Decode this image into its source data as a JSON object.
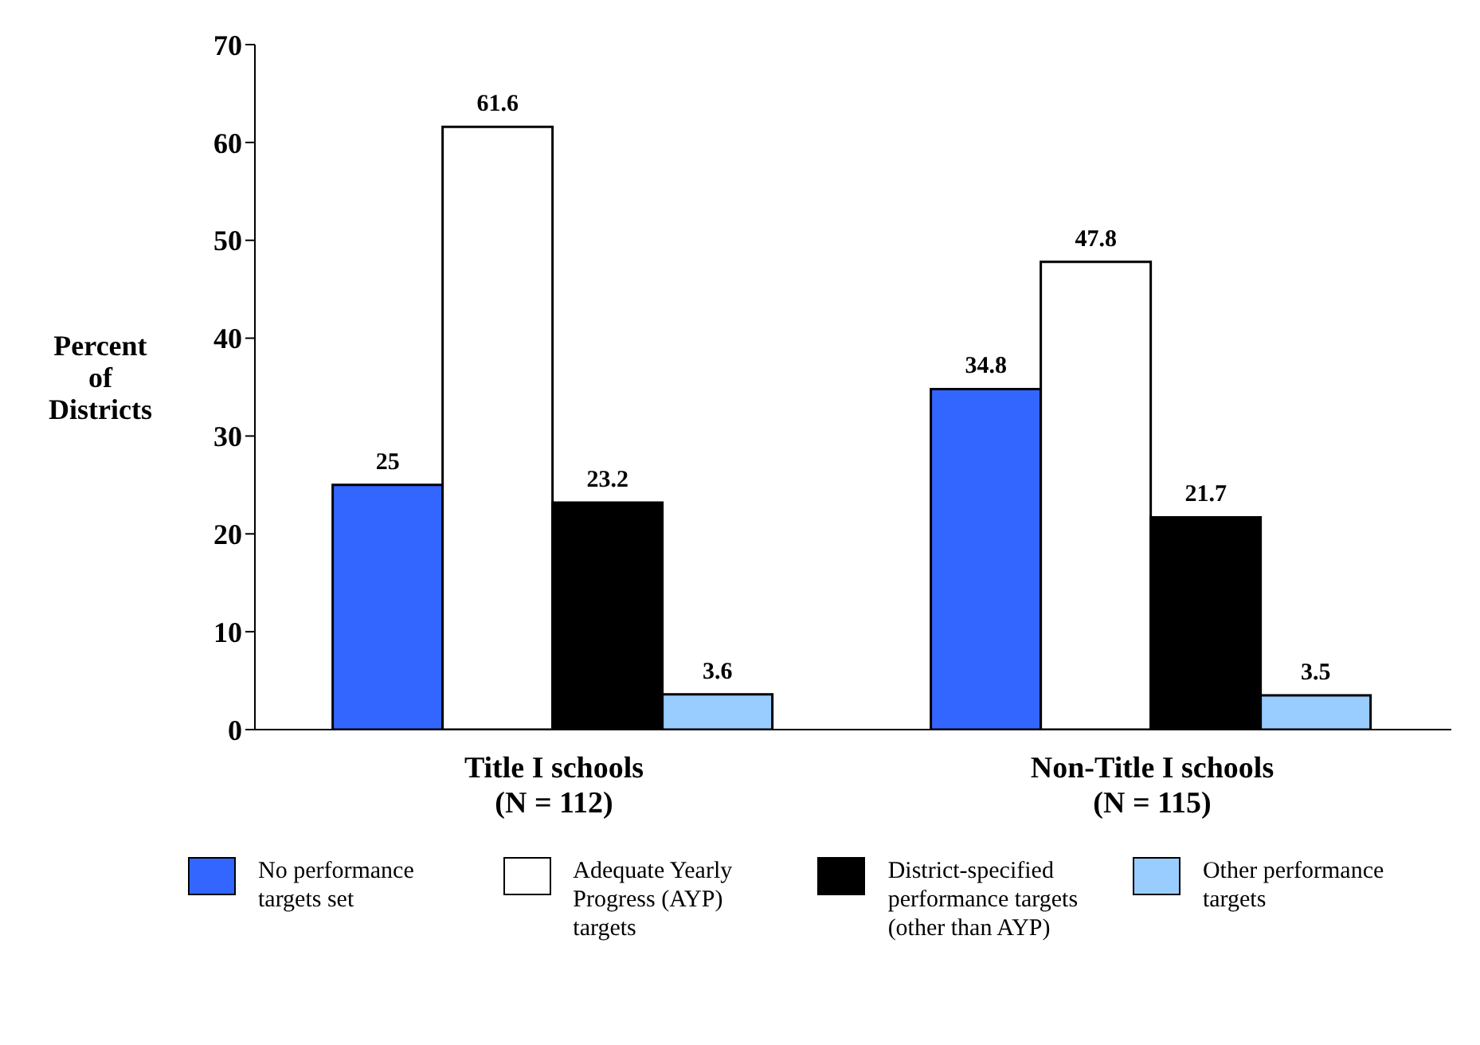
{
  "chart_data": {
    "type": "bar",
    "ylabel": "Percent of Districts",
    "categories": [
      "Title I schools\n(N = 112)",
      "Non-Title I schools\n(N = 115)"
    ],
    "series": [
      {
        "name": "No performance targets set",
        "color": "#3366ff",
        "values": [
          25,
          34.8
        ]
      },
      {
        "name": "Adequate Yearly Progress (AYP) targets",
        "color": "#ffffff",
        "values": [
          61.6,
          47.8
        ]
      },
      {
        "name": "District-specified performance targets (other than AYP)",
        "color": "#000000",
        "values": [
          23.2,
          21.7
        ]
      },
      {
        "name": "Other performance targets",
        "color": "#99ccff",
        "values": [
          3.6,
          3.5
        ]
      }
    ],
    "ylim": [
      0,
      70
    ],
    "yticks": [
      0,
      10,
      20,
      30,
      40,
      50,
      60,
      70
    ],
    "grid": false,
    "legend": "bottom",
    "data_labels": true
  }
}
